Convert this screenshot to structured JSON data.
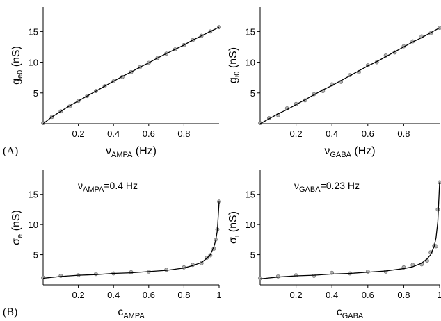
{
  "chart_data": [
    {
      "type": "line",
      "panel_label": "(A)",
      "xlabel": {
        "text": "ν",
        "sub": "AMPA",
        "after": " (Hz)"
      },
      "ylabel": {
        "text": "g",
        "sub": "e0",
        "after": " (nS)"
      },
      "x": [
        0,
        0.05,
        0.1,
        0.15,
        0.2,
        0.25,
        0.3,
        0.35,
        0.4,
        0.45,
        0.5,
        0.55,
        0.6,
        0.65,
        0.7,
        0.75,
        0.8,
        0.85,
        0.9,
        0.95,
        1.0
      ],
      "series": [
        {
          "color": "#b0b0b0",
          "marker": "circle",
          "values": [
            0.1,
            1.1,
            2.0,
            2.8,
            3.7,
            4.5,
            5.3,
            6.1,
            6.9,
            7.6,
            8.4,
            9.2,
            9.9,
            10.7,
            11.4,
            12.1,
            12.8,
            13.6,
            14.3,
            15.0,
            15.7
          ]
        },
        {
          "color": "#000000",
          "values": [
            0,
            1.1,
            2.0,
            2.9,
            3.7,
            4.5,
            5.3,
            6.1,
            6.9,
            7.7,
            8.4,
            9.2,
            9.9,
            10.7,
            11.4,
            12.1,
            12.8,
            13.6,
            14.3,
            15.0,
            15.7
          ]
        }
      ],
      "xlim": [
        0,
        1.0
      ],
      "xticks": [
        0.2,
        0.4,
        0.6,
        0.8
      ],
      "ylim": [
        0,
        19
      ],
      "yticks": [
        5,
        10,
        15
      ]
    },
    {
      "type": "line",
      "xlabel": {
        "text": "ν",
        "sub": "GABA",
        "after": " (Hz)"
      },
      "ylabel": {
        "text": "g",
        "sub": "i0",
        "after": " (nS)"
      },
      "x": [
        0,
        0.05,
        0.1,
        0.15,
        0.2,
        0.25,
        0.3,
        0.35,
        0.4,
        0.45,
        0.5,
        0.55,
        0.6,
        0.65,
        0.7,
        0.75,
        0.8,
        0.85,
        0.9,
        0.95,
        1.0
      ],
      "series": [
        {
          "color": "#b0b0b0",
          "marker": "circle",
          "values": [
            0.1,
            0.9,
            1.4,
            2.5,
            3.2,
            3.8,
            4.8,
            5.3,
            6.4,
            6.8,
            7.9,
            8.4,
            9.5,
            10.0,
            11.1,
            11.6,
            12.6,
            13.4,
            14.2,
            14.7,
            15.6
          ]
        },
        {
          "color": "#000000",
          "values": [
            0,
            0.8,
            1.6,
            2.3,
            3.1,
            3.9,
            4.7,
            5.5,
            6.2,
            7.0,
            7.8,
            8.6,
            9.4,
            10.1,
            10.9,
            11.7,
            12.5,
            13.3,
            14.0,
            14.8,
            15.6
          ]
        }
      ],
      "xlim": [
        0,
        1.0
      ],
      "xticks": [
        0.2,
        0.4,
        0.6,
        0.8
      ],
      "ylim": [
        0,
        19
      ],
      "yticks": [
        5,
        10,
        15
      ]
    },
    {
      "type": "line",
      "panel_label": "(B)",
      "xlabel": {
        "text": "c",
        "sub": "AMPA",
        "after": ""
      },
      "ylabel": {
        "text": "σ",
        "sub": "e",
        "after": " (nS)"
      },
      "annotation": {
        "text": "ν",
        "sub": "AMPA",
        "after": "=0.4 Hz"
      },
      "x": [
        0.0,
        0.1,
        0.2,
        0.3,
        0.4,
        0.5,
        0.6,
        0.7,
        0.8,
        0.85,
        0.9,
        0.93,
        0.95,
        0.97,
        0.98,
        0.99,
        1.0
      ],
      "series": [
        {
          "color": "#b0b0b0",
          "marker": "circle",
          "values": [
            1.2,
            1.5,
            1.6,
            1.8,
            1.9,
            2.1,
            2.2,
            2.5,
            2.9,
            3.3,
            3.6,
            4.5,
            4.9,
            6.0,
            7.5,
            9.2,
            13.8
          ]
        },
        {
          "color": "#000000",
          "values": [
            1.1,
            1.4,
            1.6,
            1.7,
            1.9,
            2.0,
            2.2,
            2.4,
            2.8,
            3.2,
            3.7,
            4.4,
            5.0,
            6.3,
            7.3,
            9.0,
            13.8
          ]
        }
      ],
      "xlim": [
        0,
        1.0
      ],
      "xticks": [
        0.2,
        0.4,
        0.6,
        0.8,
        1
      ],
      "ylim": [
        0,
        19
      ],
      "yticks": [
        5,
        10,
        15
      ]
    },
    {
      "type": "line",
      "xlabel": {
        "text": "c",
        "sub": "GABA",
        "after": ""
      },
      "ylabel": {
        "text": "σ",
        "sub": "i",
        "after": " (nS)"
      },
      "annotation": {
        "text": "ν",
        "sub": "GABA",
        "after": "=0.23 Hz"
      },
      "x": [
        0.0,
        0.1,
        0.2,
        0.3,
        0.4,
        0.5,
        0.6,
        0.7,
        0.8,
        0.85,
        0.9,
        0.93,
        0.95,
        0.97,
        0.98,
        0.99,
        1.0
      ],
      "series": [
        {
          "color": "#b0b0b0",
          "marker": "circle",
          "values": [
            1.1,
            1.4,
            1.6,
            1.5,
            2.0,
            1.9,
            2.2,
            2.2,
            2.9,
            3.3,
            3.4,
            4.0,
            5.4,
            6.5,
            6.4,
            12.5,
            17.0
          ]
        },
        {
          "color": "#000000",
          "values": [
            1.0,
            1.3,
            1.5,
            1.6,
            1.8,
            1.9,
            2.1,
            2.3,
            2.7,
            3.0,
            3.6,
            4.3,
            5.0,
            6.4,
            7.8,
            10.5,
            17.0
          ]
        }
      ],
      "xlim": [
        0,
        1.0
      ],
      "xticks": [
        0.2,
        0.4,
        0.6,
        0.8,
        1
      ],
      "ylim": [
        0,
        19
      ],
      "yticks": [
        5,
        10,
        15
      ]
    }
  ]
}
